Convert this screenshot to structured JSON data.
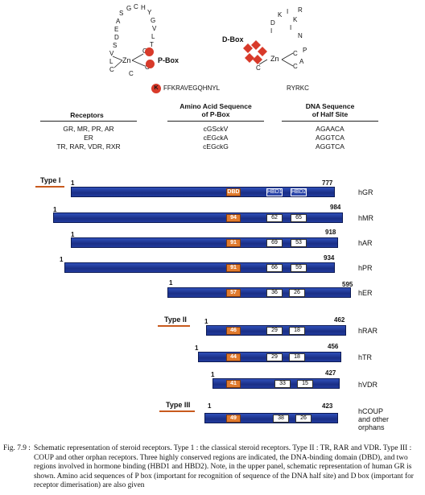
{
  "pbox": {
    "letters": [
      "S",
      "G",
      "C",
      "H",
      "Y",
      "G",
      "V",
      "L",
      "T",
      "A",
      "E",
      "D",
      "S",
      "V",
      "L",
      "C",
      "C",
      "C",
      "C"
    ],
    "zn": "Zn",
    "label": "P-Box",
    "bottom_seq": "FFKRAVEGQHNYL",
    "k_badge": "K"
  },
  "dbox": {
    "letters": [
      "K",
      "I",
      "R",
      "K",
      "N",
      "P",
      "A",
      "D",
      "I",
      "I",
      "C",
      "C",
      "C"
    ],
    "zn": "Zn",
    "label": "D-Box",
    "bottom_seq": "RYRKC"
  },
  "table": {
    "headers": {
      "receptors": "Receptors",
      "aa": "Amino Acid Sequence\nof P-Box",
      "dna": "DNA Sequence\nof Half Site"
    },
    "rows": [
      {
        "receptors": "GR, MR, PR, AR",
        "aa": "cGSckV",
        "dna": "AGAACA"
      },
      {
        "receptors": "ER",
        "aa": "cEGckA",
        "dna": "AGGTCA"
      },
      {
        "receptors": "TR, RAR, VDR, RXR",
        "aa": "cEGckG",
        "dna": "AGGTCA"
      }
    ]
  },
  "types": {
    "t1": "Type I",
    "t2": "Type II",
    "t3": "Type III"
  },
  "receptors": [
    {
      "name": "hGR",
      "start": "1",
      "end": "777",
      "dbd": "DBD",
      "hbd1": "HBD1",
      "hbd2": "HBD2"
    },
    {
      "name": "hMR",
      "start": "1",
      "end": "984",
      "dbd": "94",
      "hbd1": "62",
      "hbd2": "65"
    },
    {
      "name": "hAR",
      "start": "1",
      "end": "918",
      "dbd": "91",
      "hbd1": "69",
      "hbd2": "53"
    },
    {
      "name": "hPR",
      "start": "1",
      "end": "934",
      "dbd": "91",
      "hbd1": "66",
      "hbd2": "59"
    },
    {
      "name": "hER",
      "start": "1",
      "end": "595",
      "dbd": "57",
      "hbd1": "36",
      "hbd2": "26"
    },
    {
      "name": "hRAR",
      "start": "1",
      "end": "462",
      "dbd": "46",
      "hbd1": "29",
      "hbd2": "18"
    },
    {
      "name": "hTR",
      "start": "1",
      "end": "456",
      "dbd": "44",
      "hbd1": "29",
      "hbd2": "18"
    },
    {
      "name": "hVDR",
      "start": "1",
      "end": "427",
      "dbd": "41",
      "hbd1": "33",
      "hbd2": "15"
    },
    {
      "name": "hCOUP\nand other\norphans",
      "start": "1",
      "end": "423",
      "dbd": "49",
      "hbd1": "38",
      "hbd2": "26"
    }
  ],
  "caption": {
    "fig": "Fig. 7.9 :",
    "text": "Schematic representation of steroid receptors. Type 1 : the classical steroid receptors. Type II : TR, RAR and VDR. Type III : COUP and other orphan receptors. Three highly conserved regions are indicated, the DNA-binding domain (DBD), and two regions involved in hormone binding (HBD1 and HBD2). Note, in the upper panel, schematic representation of human GR is shown. Amino acid sequences of P box (important for recognition of sequence of the DNA half site) and D box (important for receptor dimerisation) are also given"
  },
  "colors": {
    "bar": "#1f3596",
    "dbd": "#e07a2e",
    "highlight": "#d83a2a",
    "type_line": "#c85a1e"
  }
}
